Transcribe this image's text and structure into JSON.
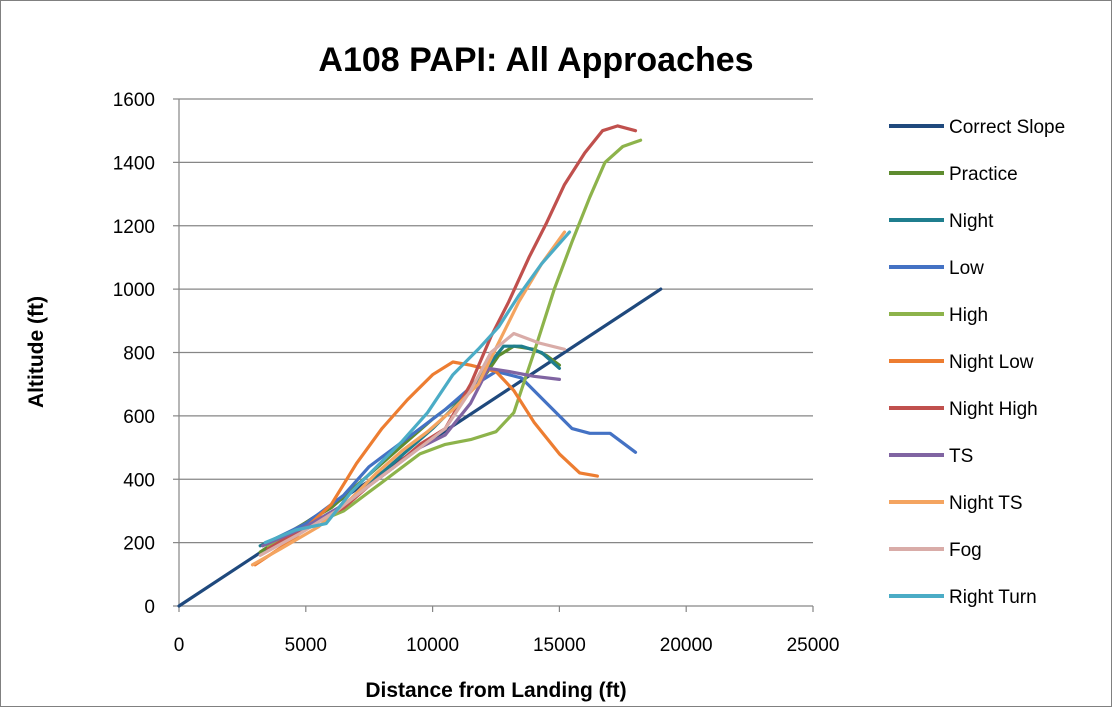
{
  "chart_data": {
    "type": "line",
    "title": "A108 PAPI: All Approaches",
    "xlabel": "Distance from Landing  (ft)",
    "ylabel": "Altitude (ft)",
    "xlim": [
      0,
      25000
    ],
    "ylim": [
      0,
      1600
    ],
    "xticks": [
      0,
      5000,
      10000,
      15000,
      20000,
      25000
    ],
    "yticks": [
      0,
      200,
      400,
      600,
      800,
      1000,
      1200,
      1400,
      1600
    ],
    "grid": "horizontal",
    "legend_position": "right",
    "series": [
      {
        "name": "Correct Slope",
        "color": "#1f497d",
        "points": [
          [
            0,
            0
          ],
          [
            19000,
            1000
          ]
        ]
      },
      {
        "name": "Practice",
        "color": "#5e8c2f",
        "points": [
          [
            3200,
            170
          ],
          [
            4500,
            240
          ],
          [
            6000,
            310
          ],
          [
            7000,
            380
          ],
          [
            8000,
            450
          ],
          [
            9000,
            520
          ],
          [
            10000,
            590
          ],
          [
            11000,
            650
          ],
          [
            12000,
            720
          ],
          [
            12600,
            790
          ],
          [
            13200,
            820
          ],
          [
            14000,
            810
          ],
          [
            14500,
            790
          ],
          [
            15000,
            760
          ]
        ]
      },
      {
        "name": "Night",
        "color": "#1f7e8e",
        "points": [
          [
            3200,
            190
          ],
          [
            4500,
            240
          ],
          [
            6000,
            290
          ],
          [
            7000,
            350
          ],
          [
            8000,
            420
          ],
          [
            9000,
            490
          ],
          [
            10000,
            560
          ],
          [
            11000,
            640
          ],
          [
            12000,
            740
          ],
          [
            12800,
            820
          ],
          [
            13500,
            820
          ],
          [
            14300,
            800
          ],
          [
            15000,
            750
          ]
        ]
      },
      {
        "name": "Low",
        "color": "#4472c4",
        "points": [
          [
            3500,
            200
          ],
          [
            5000,
            260
          ],
          [
            6500,
            350
          ],
          [
            7500,
            440
          ],
          [
            8500,
            500
          ],
          [
            9500,
            560
          ],
          [
            10500,
            620
          ],
          [
            11500,
            690
          ],
          [
            12500,
            740
          ],
          [
            13500,
            720
          ],
          [
            14500,
            640
          ],
          [
            15500,
            560
          ],
          [
            16200,
            545
          ],
          [
            17000,
            545
          ],
          [
            18000,
            485
          ]
        ]
      },
      {
        "name": "High",
        "color": "#8db34b",
        "points": [
          [
            3500,
            190
          ],
          [
            5000,
            250
          ],
          [
            6500,
            300
          ],
          [
            7500,
            360
          ],
          [
            8500,
            420
          ],
          [
            9500,
            480
          ],
          [
            10500,
            510
          ],
          [
            11500,
            525
          ],
          [
            12500,
            550
          ],
          [
            13200,
            610
          ],
          [
            14000,
            800
          ],
          [
            14800,
            1000
          ],
          [
            15500,
            1150
          ],
          [
            16200,
            1290
          ],
          [
            16800,
            1400
          ],
          [
            17500,
            1450
          ],
          [
            18200,
            1470
          ]
        ]
      },
      {
        "name": "Night Low",
        "color": "#ed7d31",
        "points": [
          [
            3000,
            130
          ],
          [
            4500,
            210
          ],
          [
            6000,
            320
          ],
          [
            7000,
            450
          ],
          [
            8000,
            560
          ],
          [
            9000,
            650
          ],
          [
            10000,
            730
          ],
          [
            10800,
            770
          ],
          [
            11500,
            760
          ],
          [
            12500,
            740
          ],
          [
            13200,
            680
          ],
          [
            14000,
            580
          ],
          [
            15000,
            480
          ],
          [
            15800,
            420
          ],
          [
            16500,
            410
          ]
        ]
      },
      {
        "name": "Night High",
        "color": "#c0504d",
        "points": [
          [
            3500,
            180
          ],
          [
            5000,
            250
          ],
          [
            6500,
            310
          ],
          [
            7500,
            380
          ],
          [
            8500,
            440
          ],
          [
            9500,
            510
          ],
          [
            10500,
            560
          ],
          [
            11500,
            700
          ],
          [
            12300,
            850
          ],
          [
            13000,
            960
          ],
          [
            13800,
            1100
          ],
          [
            14500,
            1210
          ],
          [
            15200,
            1330
          ],
          [
            16000,
            1430
          ],
          [
            16700,
            1500
          ],
          [
            17300,
            1515
          ],
          [
            18000,
            1500
          ]
        ]
      },
      {
        "name": "TS",
        "color": "#8064a2",
        "points": [
          [
            3300,
            190
          ],
          [
            5000,
            250
          ],
          [
            6500,
            320
          ],
          [
            7500,
            380
          ],
          [
            8500,
            440
          ],
          [
            9500,
            500
          ],
          [
            10500,
            540
          ],
          [
            11500,
            640
          ],
          [
            12200,
            750
          ],
          [
            13000,
            740
          ],
          [
            14000,
            725
          ],
          [
            15000,
            715
          ]
        ]
      },
      {
        "name": "Night TS",
        "color": "#f4a460",
        "points": [
          [
            2900,
            130
          ],
          [
            4000,
            180
          ],
          [
            5500,
            250
          ],
          [
            6800,
            340
          ],
          [
            7800,
            420
          ],
          [
            8800,
            490
          ],
          [
            9800,
            550
          ],
          [
            10800,
            620
          ],
          [
            11800,
            700
          ],
          [
            12600,
            830
          ],
          [
            13400,
            960
          ],
          [
            14300,
            1080
          ],
          [
            15200,
            1180
          ]
        ]
      },
      {
        "name": "Fog",
        "color": "#d9aca8",
        "points": [
          [
            3200,
            160
          ],
          [
            4800,
            230
          ],
          [
            6200,
            300
          ],
          [
            7500,
            380
          ],
          [
            8500,
            440
          ],
          [
            9500,
            500
          ],
          [
            10500,
            560
          ],
          [
            11500,
            680
          ],
          [
            12300,
            800
          ],
          [
            13200,
            860
          ],
          [
            14200,
            830
          ],
          [
            15200,
            810
          ]
        ]
      },
      {
        "name": "Right Turn",
        "color": "#4bacc6",
        "points": [
          [
            3400,
            200
          ],
          [
            4600,
            240
          ],
          [
            5800,
            260
          ],
          [
            6800,
            360
          ],
          [
            7800,
            440
          ],
          [
            8800,
            520
          ],
          [
            9800,
            610
          ],
          [
            10800,
            730
          ],
          [
            11800,
            810
          ],
          [
            12600,
            880
          ],
          [
            13400,
            980
          ],
          [
            14300,
            1080
          ],
          [
            15400,
            1180
          ]
        ]
      }
    ]
  }
}
